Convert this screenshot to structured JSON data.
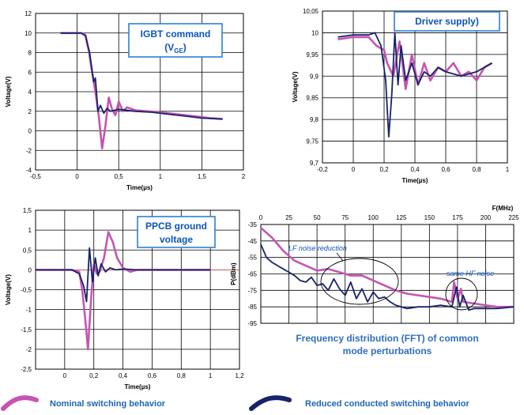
{
  "colors": {
    "nominal": "#c554b3",
    "reduced": "#17236b",
    "callout": "#0b55b8",
    "caption": "#2e6fbf",
    "zero_line": "#e0554b"
  },
  "legend": {
    "nominal": "Nominal switching behavior",
    "reduced": "Reduced conducted switching behavior"
  },
  "chart_data": [
    {
      "type": "line",
      "callout": [
        "IGBT command",
        "(V",
        "GE",
        ")"
      ],
      "xlabel": "Time(µs)",
      "ylabel": "Voltage(V)",
      "xlim": [
        -0.5,
        2
      ],
      "ylim": [
        -4,
        12
      ],
      "xticks": [
        "-0,5",
        "0",
        "0,5",
        "1",
        "1,5",
        "2"
      ],
      "yticks": [
        "-4",
        "-2",
        "0",
        "2",
        "4",
        "6",
        "8",
        "10",
        "12"
      ],
      "grid": true,
      "series": [
        {
          "key": "nominal",
          "x": [
            -0.2,
            0.05,
            0.1,
            0.14,
            0.18,
            0.22,
            0.26,
            0.3,
            0.34,
            0.38,
            0.42,
            0.46,
            0.5,
            0.55,
            0.6,
            0.7,
            0.85,
            1.0,
            1.2,
            1.4,
            1.6,
            1.75
          ],
          "y": [
            10,
            10,
            9.8,
            8.2,
            6.0,
            4.0,
            1.5,
            -1.8,
            0.5,
            3.4,
            2.2,
            1.6,
            3.0,
            2.0,
            2.4,
            2.1,
            2.0,
            1.9,
            1.7,
            1.5,
            1.3,
            1.2
          ]
        },
        {
          "key": "reduced",
          "x": [
            -0.2,
            0.05,
            0.1,
            0.15,
            0.18,
            0.2,
            0.22,
            0.25,
            0.28,
            0.32,
            0.36,
            0.4,
            0.5,
            0.7,
            0.9,
            1.1,
            1.3,
            1.5,
            1.75
          ],
          "y": [
            10,
            10,
            9.7,
            8.0,
            6.2,
            5.0,
            5.4,
            2.0,
            2.6,
            1.8,
            2.3,
            2.0,
            2.2,
            2.0,
            1.9,
            1.7,
            1.5,
            1.3,
            1.2
          ]
        }
      ]
    },
    {
      "type": "line",
      "callout": [
        "Driver supply)"
      ],
      "xlabel": "Time(µs)",
      "ylabel": "Voltage(V)",
      "xlim": [
        -0.2,
        1
      ],
      "ylim": [
        9.7,
        10.05
      ],
      "xticks": [
        "-0,2",
        "0",
        "0,2",
        "0,4",
        "0,6",
        "0,8",
        "1"
      ],
      "yticks": [
        "9,7",
        "9,75",
        "9,8",
        "9,85",
        "9,9",
        "9,95",
        "10",
        "10,05"
      ],
      "grid": true,
      "series": [
        {
          "key": "nominal",
          "x": [
            -0.1,
            0.0,
            0.1,
            0.15,
            0.2,
            0.22,
            0.26,
            0.3,
            0.34,
            0.38,
            0.42,
            0.46,
            0.5,
            0.55,
            0.6,
            0.65,
            0.7,
            0.75,
            0.8,
            0.85,
            0.9
          ],
          "y": [
            9.985,
            9.99,
            9.99,
            9.97,
            9.96,
            9.93,
            9.9,
            9.98,
            9.87,
            9.95,
            9.88,
            9.93,
            9.89,
            9.92,
            9.91,
            9.93,
            9.9,
            9.91,
            9.89,
            9.92,
            9.93
          ]
        },
        {
          "key": "reduced",
          "x": [
            -0.1,
            0.0,
            0.1,
            0.14,
            0.18,
            0.21,
            0.23,
            0.25,
            0.27,
            0.29,
            0.31,
            0.34,
            0.38,
            0.42,
            0.46,
            0.5,
            0.55,
            0.6,
            0.7,
            0.8,
            0.9
          ],
          "y": [
            9.99,
            9.995,
            9.995,
            10.0,
            9.97,
            9.89,
            9.76,
            9.86,
            10.0,
            9.88,
            9.97,
            9.89,
            9.93,
            9.88,
            9.91,
            9.9,
            9.92,
            9.91,
            9.9,
            9.91,
            9.93
          ]
        }
      ]
    },
    {
      "type": "line",
      "callout": [
        "PPCB ground",
        "voltage"
      ],
      "xlabel": "Time(µs)",
      "ylabel": "Voltage(V)",
      "xlim": [
        -0.2,
        1.2
      ],
      "ylim": [
        -2.5,
        1.5
      ],
      "xticks": [
        "0",
        "0,2",
        "0,4",
        "0,6",
        "0,8",
        "1",
        "1,2"
      ],
      "xtick_values": [
        0,
        0.2,
        0.4,
        0.6,
        0.8,
        1.0,
        1.2
      ],
      "yticks": [
        "-2,5",
        "-2",
        "-1,5",
        "-1",
        "-0,5",
        "0",
        "0,5",
        "1",
        "1,5"
      ],
      "grid": true,
      "series": [
        {
          "key": "nominal",
          "x": [
            -0.2,
            0.05,
            0.1,
            0.12,
            0.14,
            0.16,
            0.18,
            0.2,
            0.22,
            0.24,
            0.27,
            0.3,
            0.33,
            0.36,
            0.4,
            0.45,
            0.5,
            0.6,
            0.8,
            1.0
          ],
          "y": [
            0,
            0,
            -0.05,
            -0.5,
            -1.2,
            -2.0,
            -0.8,
            0.15,
            -0.1,
            -0.05,
            0.3,
            0.95,
            0.7,
            0.3,
            0.05,
            -0.05,
            0.0,
            0.0,
            0.0,
            0.0
          ]
        },
        {
          "key": "reduced",
          "x": [
            -0.2,
            0.05,
            0.1,
            0.13,
            0.15,
            0.17,
            0.19,
            0.21,
            0.23,
            0.25,
            0.28,
            0.31,
            0.35,
            0.4,
            0.5,
            0.6,
            0.8,
            1.0
          ],
          "y": [
            0,
            0,
            -0.1,
            -0.4,
            -0.8,
            0.55,
            -0.3,
            0.3,
            -0.15,
            0.15,
            -0.05,
            0.05,
            0.0,
            0.02,
            0.0,
            0.0,
            0.0,
            0.0
          ]
        }
      ]
    },
    {
      "type": "line",
      "top_axis_label": "F(MHz)",
      "ylabel": "P(dBm)",
      "xlim": [
        0,
        225
      ],
      "ylim": [
        -95,
        -35
      ],
      "xticks": [
        "0",
        "25",
        "50",
        "75",
        "100",
        "125",
        "150",
        "175",
        "200",
        "225"
      ],
      "yticks": [
        "-35",
        "-45",
        "-55",
        "-65",
        "-75",
        "-85",
        "-95"
      ],
      "grid": true,
      "annotations": [
        "LF noise reduction",
        "same  HF noise"
      ],
      "caption": [
        "Frequency distribution (FFT) of common",
        "mode perturbations"
      ],
      "series": [
        {
          "key": "nominal",
          "x": [
            0,
            5,
            10,
            15,
            20,
            30,
            40,
            50,
            60,
            70,
            80,
            90,
            100,
            110,
            120,
            130,
            140,
            150,
            160,
            170,
            172,
            175,
            178,
            180,
            190,
            200,
            210,
            225
          ],
          "y": [
            -37,
            -40,
            -43,
            -47,
            -51,
            -57,
            -60,
            -63,
            -62,
            -64,
            -66,
            -66,
            -69,
            -72,
            -75,
            -77,
            -78,
            -79,
            -80,
            -82,
            -70,
            -80,
            -74,
            -82,
            -83,
            -84,
            -85,
            -85
          ]
        },
        {
          "key": "reduced",
          "x": [
            0,
            5,
            10,
            15,
            20,
            25,
            30,
            35,
            40,
            45,
            50,
            55,
            60,
            65,
            70,
            75,
            80,
            85,
            90,
            95,
            100,
            105,
            110,
            115,
            120,
            130,
            140,
            150,
            160,
            170,
            174,
            177,
            180,
            185,
            190,
            200,
            210,
            225
          ],
          "y": [
            -47,
            -55,
            -58,
            -60,
            -62,
            -64,
            -66,
            -69,
            -70,
            -67,
            -72,
            -71,
            -75,
            -68,
            -74,
            -78,
            -70,
            -80,
            -74,
            -82,
            -76,
            -80,
            -79,
            -82,
            -84,
            -86,
            -85,
            -85,
            -84,
            -85,
            -73,
            -85,
            -78,
            -87,
            -86,
            -86,
            -86,
            -85
          ]
        }
      ]
    }
  ]
}
